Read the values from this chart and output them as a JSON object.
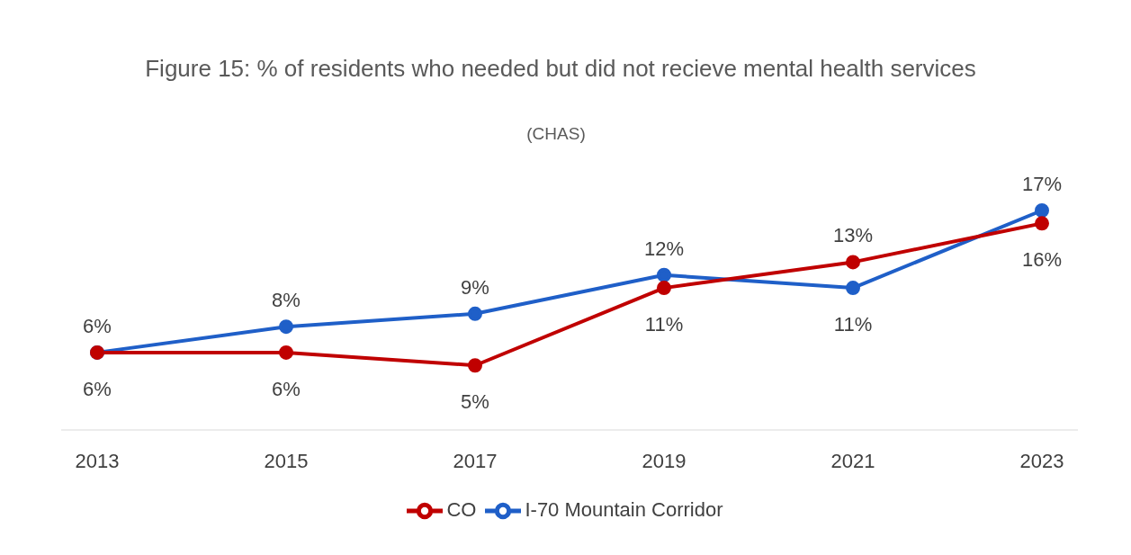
{
  "chart_data": {
    "type": "line",
    "title": "Figure 15: % of residents who needed but did not recieve mental health services",
    "subtitle": "(CHAS)",
    "categories": [
      "2013",
      "2015",
      "2017",
      "2019",
      "2021",
      "2023"
    ],
    "series": [
      {
        "name": "I-70 Mountain Corridor",
        "color": "#1f5fc8",
        "values": [
          6,
          8,
          9,
          12,
          11,
          17
        ],
        "value_labels": [
          "6%",
          "8%",
          "9%",
          "12%",
          "11%",
          "17%"
        ]
      },
      {
        "name": "CO",
        "color": "#c00000",
        "values": [
          6,
          6,
          5,
          11,
          13,
          16
        ],
        "value_labels": [
          "6%",
          "6%",
          "5%",
          "11%",
          "13%",
          "16%"
        ]
      }
    ],
    "legend": "bottom",
    "marker": "circle",
    "line_style": "solid"
  }
}
